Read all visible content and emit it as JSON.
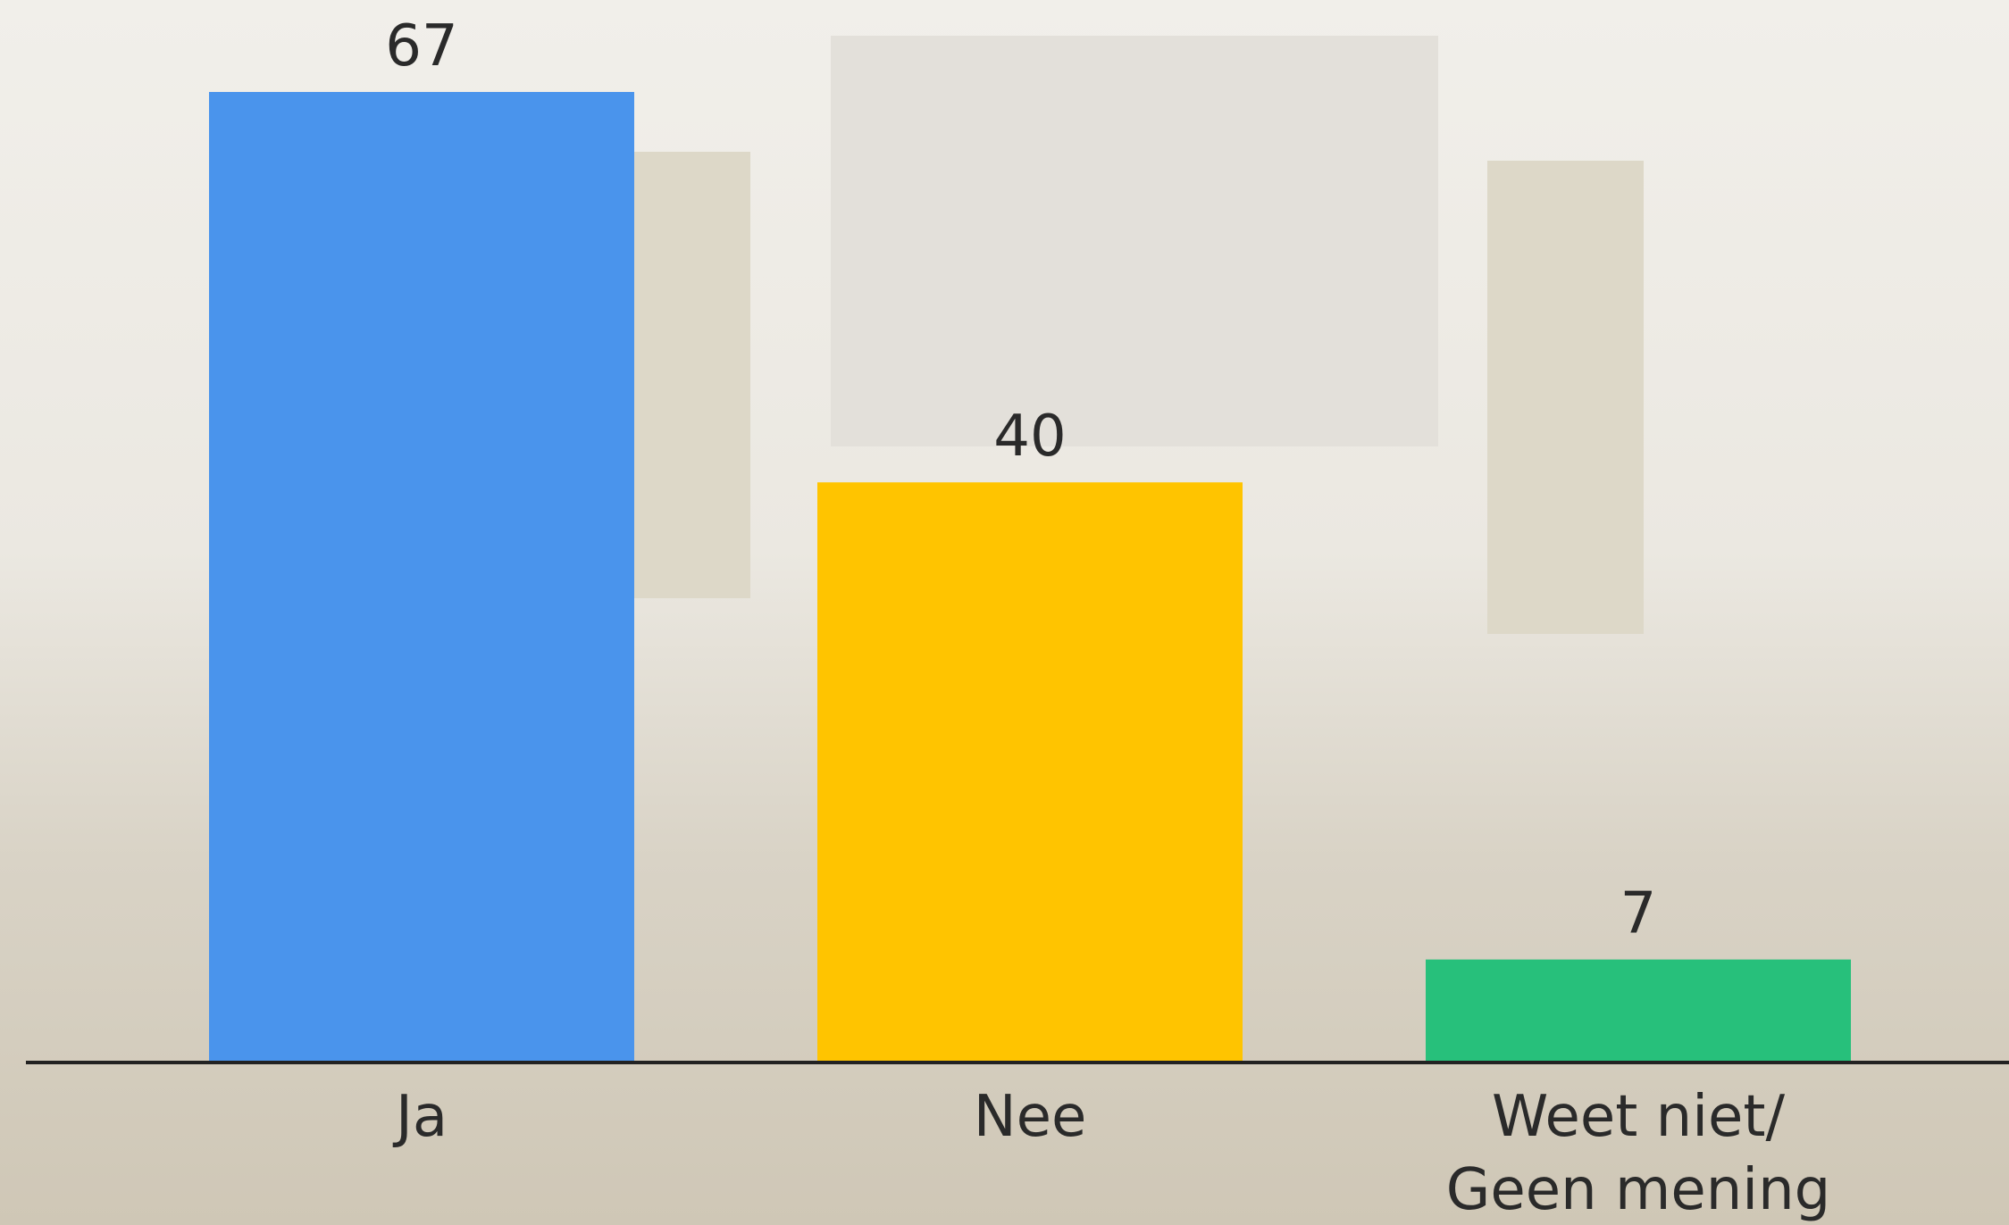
{
  "chart_data": {
    "type": "bar",
    "categories": [
      "Ja",
      "Nee",
      "Weet niet/ Geen mening"
    ],
    "values": [
      67,
      40,
      7
    ],
    "colors": [
      "#4a94ec",
      "#ffc400",
      "#27c07b"
    ]
  }
}
